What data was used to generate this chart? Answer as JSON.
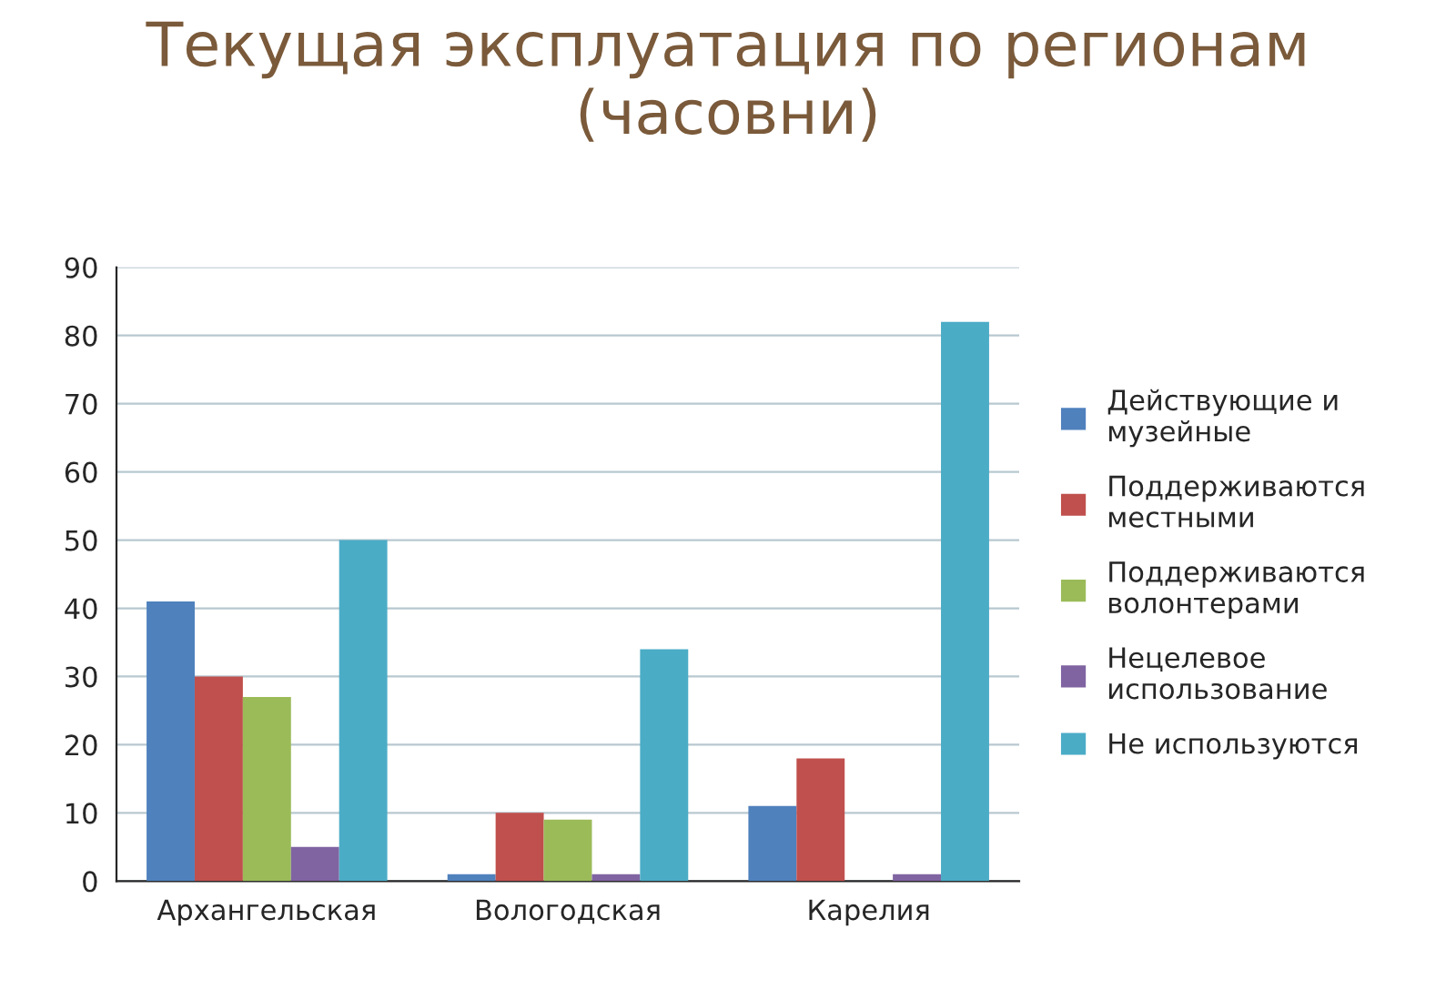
{
  "chart_data": {
    "type": "bar",
    "title": "Текущая эксплуатация по регионам\n(часовни)",
    "categories": [
      "Архангельская",
      "Вологодская",
      "Карелия"
    ],
    "series": [
      {
        "name": "Действующие и\nмузейные",
        "color": "#4f81bd",
        "values": [
          41,
          1,
          11
        ]
      },
      {
        "name": "Поддерживаются\nместными",
        "color": "#c0504d",
        "values": [
          30,
          10,
          18
        ]
      },
      {
        "name": "Поддерживаются\nволонтерами",
        "color": "#9bbb59",
        "values": [
          27,
          9,
          null
        ]
      },
      {
        "name": "Нецелевое\nиспользование",
        "color": "#8064a2",
        "values": [
          5,
          1,
          1
        ]
      },
      {
        "name": "Не используются",
        "color": "#4bacc6",
        "values": [
          50,
          34,
          82
        ]
      }
    ],
    "ylim": [
      0,
      90
    ],
    "yticks": [
      0,
      10,
      20,
      30,
      40,
      50,
      60,
      70,
      80,
      90
    ],
    "grid": "y",
    "legend": "right"
  }
}
